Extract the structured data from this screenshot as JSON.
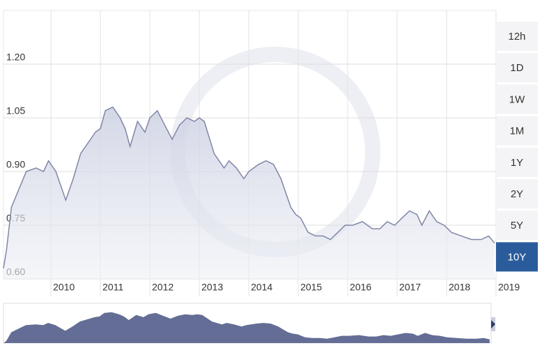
{
  "chart_data": {
    "type": "line",
    "x": [
      2009.04,
      2009.1,
      2009.2,
      2009.35,
      2009.5,
      2009.7,
      2009.85,
      2009.95,
      2010.1,
      2010.3,
      2010.45,
      2010.6,
      2010.75,
      2010.9,
      2011.0,
      2011.1,
      2011.25,
      2011.4,
      2011.5,
      2011.6,
      2011.75,
      2011.9,
      2012.0,
      2012.15,
      2012.3,
      2012.45,
      2012.6,
      2012.75,
      2012.9,
      2013.0,
      2013.1,
      2013.3,
      2013.5,
      2013.6,
      2013.75,
      2013.9,
      2014.0,
      2014.2,
      2014.35,
      2014.5,
      2014.65,
      2014.75,
      2014.85,
      2014.95,
      2015.05,
      2015.2,
      2015.35,
      2015.5,
      2015.65,
      2015.8,
      2015.95,
      2016.1,
      2016.3,
      2016.5,
      2016.65,
      2016.8,
      2016.95,
      2017.1,
      2017.25,
      2017.4,
      2017.5,
      2017.65,
      2017.8,
      2017.95,
      2018.1,
      2018.3,
      2018.5,
      2018.7,
      2018.85,
      2018.97
    ],
    "series": [
      {
        "color": "#7f86a6",
        "values": [
          0.63,
          0.68,
          0.8,
          0.85,
          0.9,
          0.91,
          0.9,
          0.93,
          0.9,
          0.82,
          0.88,
          0.95,
          0.98,
          1.01,
          1.02,
          1.07,
          1.08,
          1.05,
          1.02,
          0.97,
          1.04,
          1.01,
          1.05,
          1.07,
          1.03,
          0.99,
          1.03,
          1.05,
          1.04,
          1.05,
          1.04,
          0.95,
          0.91,
          0.93,
          0.91,
          0.88,
          0.9,
          0.92,
          0.93,
          0.92,
          0.88,
          0.84,
          0.8,
          0.78,
          0.77,
          0.73,
          0.72,
          0.72,
          0.71,
          0.73,
          0.75,
          0.75,
          0.76,
          0.74,
          0.74,
          0.76,
          0.75,
          0.77,
          0.79,
          0.78,
          0.75,
          0.79,
          0.76,
          0.75,
          0.73,
          0.72,
          0.71,
          0.71,
          0.72,
          0.7
        ]
      }
    ],
    "xlim": [
      2009.04,
      2019
    ],
    "xticks": [
      2010,
      2011,
      2012,
      2013,
      2014,
      2015,
      2016,
      2017,
      2018,
      2019
    ],
    "ylim": [
      0.6,
      1.35
    ],
    "yticks": [
      {
        "value": 0.6,
        "label": "0.60"
      },
      {
        "value": 0.75,
        "label": "0.75"
      },
      {
        "value": 0.9,
        "label": "0.90"
      },
      {
        "value": 1.05,
        "label": "1.05"
      },
      {
        "value": 1.2,
        "label": "1.20"
      }
    ],
    "grid": true,
    "navigator_color": "#646d95",
    "ranges": [
      "12h",
      "1D",
      "1W",
      "1M",
      "1Y",
      "2Y",
      "5Y",
      "10Y"
    ],
    "active_range": "10Y",
    "active_color": "#2a5c9c"
  }
}
